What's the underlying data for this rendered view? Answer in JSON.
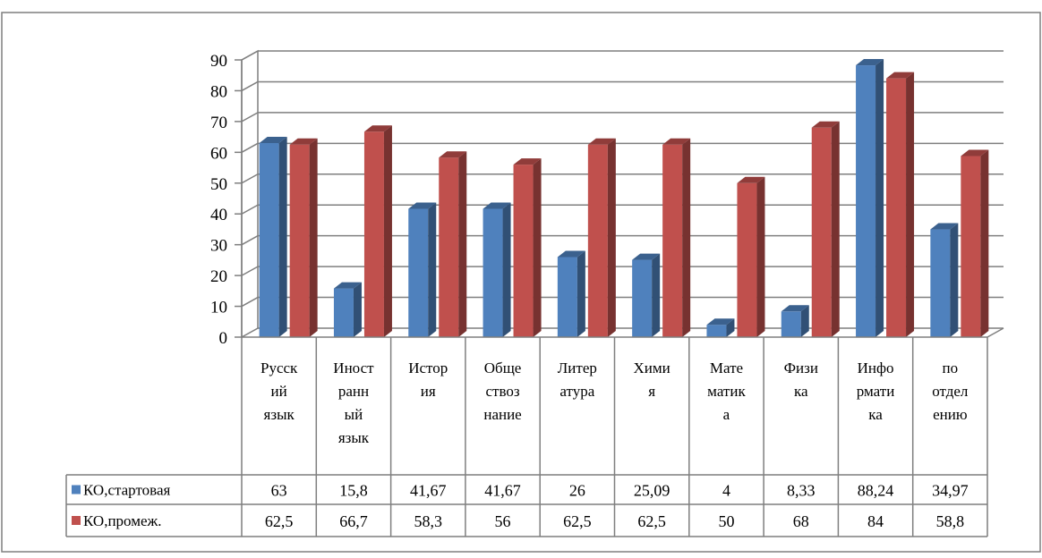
{
  "chart_data": {
    "type": "bar",
    "categories": [
      [
        "Русск",
        "ий",
        "язык"
      ],
      [
        "Иност",
        "ранн",
        "ый",
        "язык"
      ],
      [
        "Истор",
        "ия"
      ],
      [
        "Обще",
        "ствоз",
        "нание"
      ],
      [
        "Литер",
        "атура"
      ],
      [
        "Хими",
        "я"
      ],
      [
        "Мате",
        "матик",
        "а"
      ],
      [
        "Физи",
        "ка"
      ],
      [
        "Инфо",
        "рмати",
        "ка"
      ],
      [
        "по",
        "отдел",
        "ению"
      ]
    ],
    "series": [
      {
        "name": "КО,стартовая",
        "values": [
          63,
          15.8,
          41.67,
          41.67,
          26,
          25.09,
          4,
          8.33,
          88.24,
          34.97
        ],
        "labels": [
          "63",
          "15,8",
          "41,67",
          "41,67",
          "26",
          "25,09",
          "4",
          "8,33",
          "88,24",
          "34,97"
        ],
        "color": "#4f81bd"
      },
      {
        "name": "КО,промеж.",
        "values": [
          62.5,
          66.7,
          58.3,
          56,
          62.5,
          62.5,
          50,
          68,
          84,
          58.8
        ],
        "labels": [
          "62,5",
          "66,7",
          "58,3",
          "56",
          "62,5",
          "62,5",
          "50",
          "68",
          "84",
          "58,8"
        ],
        "color": "#c0504d"
      }
    ],
    "yticks": [
      "0",
      "10",
      "20",
      "30",
      "40",
      "50",
      "60",
      "70",
      "80",
      "90"
    ],
    "ylim": [
      0,
      90
    ],
    "grid": true,
    "legend": "data-table"
  }
}
